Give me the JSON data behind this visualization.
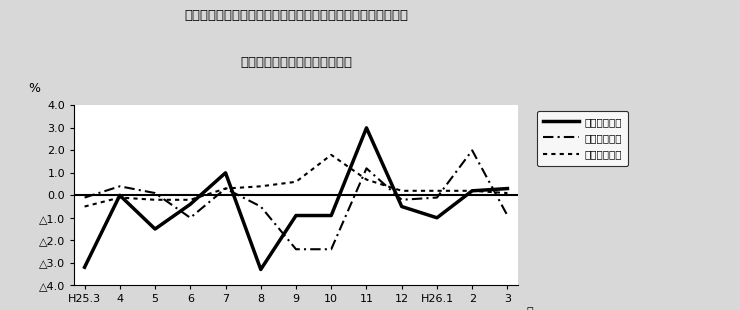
{
  "title_line1": "第４図　賃金、労働時間、常用雇用指数　対前年同月比の推移",
  "title_line2": "（規模５人以上　調査産業計）",
  "xlabel": "月",
  "ylabel": "%",
  "x_labels": [
    "H25.3",
    "4",
    "5",
    "6",
    "7",
    "8",
    "9",
    "10",
    "11",
    "12",
    "H26.1",
    "2",
    "3"
  ],
  "ylim": [
    -4.0,
    4.0
  ],
  "yticks": [
    4.0,
    3.0,
    2.0,
    1.0,
    0.0,
    -1.0,
    -2.0,
    -3.0,
    -4.0
  ],
  "ytick_labels": [
    "4.0",
    "3.0",
    "2.0",
    "1.0",
    "0.0",
    "△1.0",
    "△2.0",
    "△3.0",
    "△4.0"
  ],
  "series": {
    "現金給与総額": {
      "values": [
        -3.2,
        0.0,
        -1.5,
        -0.4,
        1.0,
        -3.3,
        -0.9,
        -0.9,
        3.0,
        -0.5,
        -1.0,
        0.2,
        0.3
      ],
      "linestyle": "solid",
      "linewidth": 2.5,
      "color": "#000000"
    },
    "総実労働時間": {
      "values": [
        -0.1,
        0.4,
        0.1,
        -1.0,
        0.3,
        -0.5,
        -2.4,
        -2.4,
        1.2,
        -0.2,
        -0.1,
        2.0,
        -0.9
      ],
      "linestyle": "dashdot",
      "linewidth": 1.5,
      "color": "#000000"
    },
    "常用雇用指数": {
      "values": [
        -0.5,
        -0.1,
        -0.2,
        -0.2,
        0.3,
        0.4,
        0.6,
        1.8,
        0.7,
        0.2,
        0.2,
        0.2,
        0.1
      ],
      "linestyle": "dotted",
      "linewidth": 1.5,
      "color": "#000000"
    }
  },
  "legend_labels": [
    "現金給与総額",
    "総実労働時間",
    "常用雇用指数"
  ],
  "legend_linestyles": [
    "solid",
    "dashdot",
    "dotted"
  ],
  "legend_linewidths": [
    2.5,
    1.5,
    1.5
  ],
  "bg_color": "#d8d8d8",
  "plot_bg_color": "#ffffff"
}
